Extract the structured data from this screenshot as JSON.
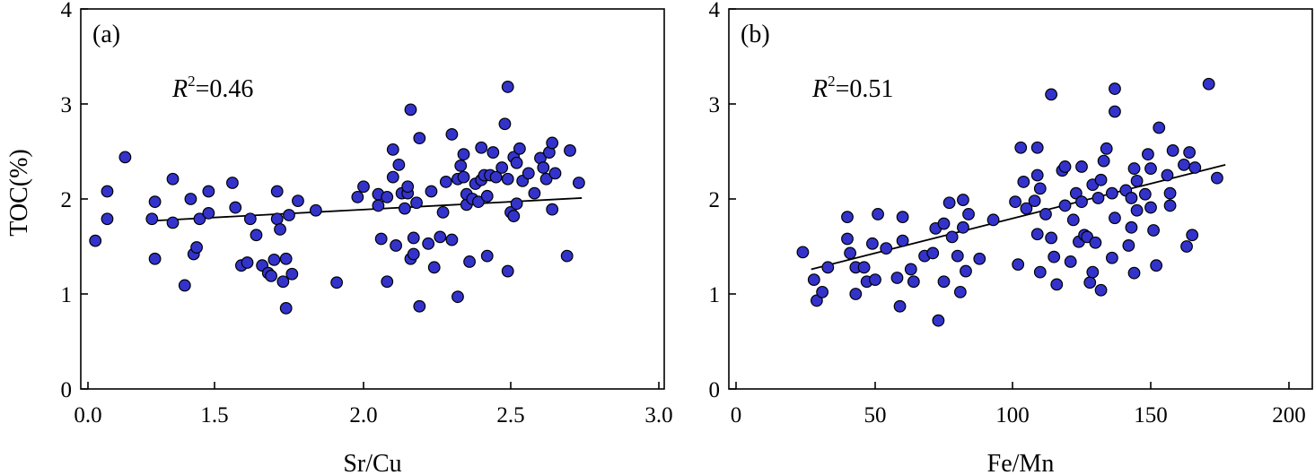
{
  "figure": {
    "ylabel": "TOC(%)",
    "point_color": "#3333cc"
  },
  "chart_data": [
    {
      "type": "scatter",
      "panel_label": "(a)",
      "r2_label": "R",
      "r2_sup": "2",
      "r2_value": "=0.46",
      "xlabel": "Sr/Cu",
      "ylabel": "TOC(%)",
      "xlim": [
        0.0,
        3.0
      ],
      "ylim": [
        0,
        4
      ],
      "xticks": [
        "0.0",
        "1.5",
        "2.0",
        "2.5",
        "3.0"
      ],
      "yticks": [
        "0",
        "1",
        "2",
        "3",
        "4"
      ],
      "trendline": {
        "x": [
          1.29,
          2.74
        ],
        "y": [
          1.77,
          2.01
        ]
      },
      "points": [
        {
          "x": 1.1,
          "y": 1.56
        },
        {
          "x": 1.14,
          "y": 2.08
        },
        {
          "x": 1.14,
          "y": 1.79
        },
        {
          "x": 1.2,
          "y": 2.44
        },
        {
          "x": 1.29,
          "y": 1.79
        },
        {
          "x": 1.3,
          "y": 1.97
        },
        {
          "x": 1.3,
          "y": 1.37
        },
        {
          "x": 1.36,
          "y": 1.75
        },
        {
          "x": 1.36,
          "y": 2.21
        },
        {
          "x": 1.4,
          "y": 1.09
        },
        {
          "x": 1.42,
          "y": 2.0
        },
        {
          "x": 1.43,
          "y": 1.42
        },
        {
          "x": 1.44,
          "y": 1.49
        },
        {
          "x": 1.45,
          "y": 1.79
        },
        {
          "x": 1.48,
          "y": 2.08
        },
        {
          "x": 1.48,
          "y": 1.85
        },
        {
          "x": 1.56,
          "y": 2.17
        },
        {
          "x": 1.57,
          "y": 1.91
        },
        {
          "x": 1.59,
          "y": 1.3
        },
        {
          "x": 1.61,
          "y": 1.33
        },
        {
          "x": 1.62,
          "y": 1.79
        },
        {
          "x": 1.64,
          "y": 1.62
        },
        {
          "x": 1.66,
          "y": 1.3
        },
        {
          "x": 1.68,
          "y": 1.22
        },
        {
          "x": 1.69,
          "y": 1.19
        },
        {
          "x": 1.7,
          "y": 1.36
        },
        {
          "x": 1.71,
          "y": 1.79
        },
        {
          "x": 1.71,
          "y": 2.08
        },
        {
          "x": 1.72,
          "y": 1.68
        },
        {
          "x": 1.73,
          "y": 1.13
        },
        {
          "x": 1.74,
          "y": 0.85
        },
        {
          "x": 1.74,
          "y": 1.37
        },
        {
          "x": 1.75,
          "y": 1.83
        },
        {
          "x": 1.76,
          "y": 1.21
        },
        {
          "x": 1.78,
          "y": 1.98
        },
        {
          "x": 1.84,
          "y": 1.88
        },
        {
          "x": 1.91,
          "y": 1.12
        },
        {
          "x": 1.98,
          "y": 2.02
        },
        {
          "x": 2.0,
          "y": 2.13
        },
        {
          "x": 2.05,
          "y": 2.05
        },
        {
          "x": 2.05,
          "y": 1.93
        },
        {
          "x": 2.06,
          "y": 1.58
        },
        {
          "x": 2.08,
          "y": 1.13
        },
        {
          "x": 2.08,
          "y": 2.02
        },
        {
          "x": 2.1,
          "y": 2.23
        },
        {
          "x": 2.1,
          "y": 2.52
        },
        {
          "x": 2.11,
          "y": 1.51
        },
        {
          "x": 2.12,
          "y": 2.36
        },
        {
          "x": 2.13,
          "y": 2.06
        },
        {
          "x": 2.14,
          "y": 1.9
        },
        {
          "x": 2.15,
          "y": 2.06
        },
        {
          "x": 2.15,
          "y": 2.13
        },
        {
          "x": 2.16,
          "y": 2.94
        },
        {
          "x": 2.16,
          "y": 1.37
        },
        {
          "x": 2.17,
          "y": 1.59
        },
        {
          "x": 2.17,
          "y": 1.42
        },
        {
          "x": 2.18,
          "y": 1.96
        },
        {
          "x": 2.19,
          "y": 2.64
        },
        {
          "x": 2.19,
          "y": 0.87
        },
        {
          "x": 2.22,
          "y": 1.53
        },
        {
          "x": 2.23,
          "y": 2.08
        },
        {
          "x": 2.24,
          "y": 1.28
        },
        {
          "x": 2.26,
          "y": 1.6
        },
        {
          "x": 2.27,
          "y": 1.86
        },
        {
          "x": 2.28,
          "y": 2.18
        },
        {
          "x": 2.3,
          "y": 1.57
        },
        {
          "x": 2.3,
          "y": 2.68
        },
        {
          "x": 2.32,
          "y": 2.21
        },
        {
          "x": 2.32,
          "y": 0.97
        },
        {
          "x": 2.33,
          "y": 2.35
        },
        {
          "x": 2.34,
          "y": 2.23
        },
        {
          "x": 2.34,
          "y": 2.47
        },
        {
          "x": 2.35,
          "y": 1.94
        },
        {
          "x": 2.35,
          "y": 2.05
        },
        {
          "x": 2.36,
          "y": 1.34
        },
        {
          "x": 2.37,
          "y": 2.0
        },
        {
          "x": 2.38,
          "y": 2.16
        },
        {
          "x": 2.39,
          "y": 1.97
        },
        {
          "x": 2.4,
          "y": 2.54
        },
        {
          "x": 2.4,
          "y": 2.2
        },
        {
          "x": 2.41,
          "y": 2.25
        },
        {
          "x": 2.42,
          "y": 1.4
        },
        {
          "x": 2.42,
          "y": 2.03
        },
        {
          "x": 2.43,
          "y": 2.25
        },
        {
          "x": 2.44,
          "y": 2.49
        },
        {
          "x": 2.45,
          "y": 2.23
        },
        {
          "x": 2.47,
          "y": 2.33
        },
        {
          "x": 2.48,
          "y": 2.79
        },
        {
          "x": 2.49,
          "y": 3.18
        },
        {
          "x": 2.49,
          "y": 2.21
        },
        {
          "x": 2.49,
          "y": 1.24
        },
        {
          "x": 2.5,
          "y": 1.86
        },
        {
          "x": 2.51,
          "y": 1.82
        },
        {
          "x": 2.51,
          "y": 2.44
        },
        {
          "x": 2.52,
          "y": 2.38
        },
        {
          "x": 2.52,
          "y": 1.95
        },
        {
          "x": 2.53,
          "y": 2.53
        },
        {
          "x": 2.54,
          "y": 2.19
        },
        {
          "x": 2.56,
          "y": 2.27
        },
        {
          "x": 2.58,
          "y": 2.06
        },
        {
          "x": 2.6,
          "y": 2.43
        },
        {
          "x": 2.61,
          "y": 2.33
        },
        {
          "x": 2.62,
          "y": 2.21
        },
        {
          "x": 2.63,
          "y": 2.49
        },
        {
          "x": 2.64,
          "y": 1.89
        },
        {
          "x": 2.64,
          "y": 2.59
        },
        {
          "x": 2.65,
          "y": 2.27
        },
        {
          "x": 2.69,
          "y": 1.4
        },
        {
          "x": 2.7,
          "y": 2.51
        },
        {
          "x": 2.73,
          "y": 2.17
        }
      ]
    },
    {
      "type": "scatter",
      "panel_label": "(b)",
      "r2_label": "R",
      "r2_sup": "2",
      "r2_value": "=0.51",
      "xlabel": "Fe/Mn",
      "ylabel": "",
      "xlim": [
        0,
        200
      ],
      "ylim": [
        0,
        4
      ],
      "xticks": [
        "0",
        "50",
        "100",
        "150",
        "200"
      ],
      "yticks": [
        "0",
        "1",
        "2",
        "3",
        "4"
      ],
      "trendline": {
        "x": [
          27,
          177
        ],
        "y": [
          1.26,
          2.36
        ]
      },
      "points": [
        {
          "x": 24,
          "y": 1.44
        },
        {
          "x": 28,
          "y": 1.15
        },
        {
          "x": 29,
          "y": 0.93
        },
        {
          "x": 31,
          "y": 1.02
        },
        {
          "x": 33,
          "y": 1.28
        },
        {
          "x": 40,
          "y": 1.81
        },
        {
          "x": 40,
          "y": 1.58
        },
        {
          "x": 41,
          "y": 1.43
        },
        {
          "x": 43,
          "y": 1.28
        },
        {
          "x": 43,
          "y": 1.0
        },
        {
          "x": 46,
          "y": 1.28
        },
        {
          "x": 47,
          "y": 1.13
        },
        {
          "x": 49,
          "y": 1.53
        },
        {
          "x": 50,
          "y": 1.15
        },
        {
          "x": 51,
          "y": 1.84
        },
        {
          "x": 54,
          "y": 1.48
        },
        {
          "x": 58,
          "y": 1.17
        },
        {
          "x": 59,
          "y": 0.87
        },
        {
          "x": 60,
          "y": 1.56
        },
        {
          "x": 60,
          "y": 1.81
        },
        {
          "x": 63,
          "y": 1.26
        },
        {
          "x": 64,
          "y": 1.13
        },
        {
          "x": 68,
          "y": 1.4
        },
        {
          "x": 71,
          "y": 1.43
        },
        {
          "x": 72,
          "y": 1.69
        },
        {
          "x": 73,
          "y": 0.72
        },
        {
          "x": 75,
          "y": 1.13
        },
        {
          "x": 75,
          "y": 1.74
        },
        {
          "x": 77,
          "y": 1.96
        },
        {
          "x": 78,
          "y": 1.6
        },
        {
          "x": 80,
          "y": 1.4
        },
        {
          "x": 81,
          "y": 1.02
        },
        {
          "x": 82,
          "y": 1.99
        },
        {
          "x": 82,
          "y": 1.7
        },
        {
          "x": 83,
          "y": 1.24
        },
        {
          "x": 84,
          "y": 1.84
        },
        {
          "x": 88,
          "y": 1.37
        },
        {
          "x": 93,
          "y": 1.78
        },
        {
          "x": 101,
          "y": 1.97
        },
        {
          "x": 102,
          "y": 1.31
        },
        {
          "x": 103,
          "y": 2.54
        },
        {
          "x": 104,
          "y": 2.18
        },
        {
          "x": 105,
          "y": 1.9
        },
        {
          "x": 108,
          "y": 1.98
        },
        {
          "x": 109,
          "y": 1.63
        },
        {
          "x": 109,
          "y": 2.25
        },
        {
          "x": 109,
          "y": 2.54
        },
        {
          "x": 110,
          "y": 1.23
        },
        {
          "x": 110,
          "y": 2.11
        },
        {
          "x": 112,
          "y": 1.84
        },
        {
          "x": 114,
          "y": 1.59
        },
        {
          "x": 114,
          "y": 3.1
        },
        {
          "x": 115,
          "y": 1.39
        },
        {
          "x": 116,
          "y": 1.1
        },
        {
          "x": 118,
          "y": 2.3
        },
        {
          "x": 119,
          "y": 2.34
        },
        {
          "x": 119,
          "y": 1.93
        },
        {
          "x": 121,
          "y": 1.34
        },
        {
          "x": 122,
          "y": 1.78
        },
        {
          "x": 123,
          "y": 2.06
        },
        {
          "x": 124,
          "y": 1.55
        },
        {
          "x": 125,
          "y": 2.34
        },
        {
          "x": 125,
          "y": 1.97
        },
        {
          "x": 126,
          "y": 1.62
        },
        {
          "x": 127,
          "y": 1.6
        },
        {
          "x": 128,
          "y": 1.12
        },
        {
          "x": 129,
          "y": 1.23
        },
        {
          "x": 129,
          "y": 2.15
        },
        {
          "x": 130,
          "y": 1.54
        },
        {
          "x": 131,
          "y": 2.01
        },
        {
          "x": 132,
          "y": 1.04
        },
        {
          "x": 132,
          "y": 2.2
        },
        {
          "x": 133,
          "y": 2.4
        },
        {
          "x": 134,
          "y": 2.53
        },
        {
          "x": 136,
          "y": 2.06
        },
        {
          "x": 136,
          "y": 1.38
        },
        {
          "x": 137,
          "y": 3.16
        },
        {
          "x": 137,
          "y": 2.92
        },
        {
          "x": 137,
          "y": 1.8
        },
        {
          "x": 141,
          "y": 2.09
        },
        {
          "x": 142,
          "y": 1.51
        },
        {
          "x": 143,
          "y": 2.01
        },
        {
          "x": 143,
          "y": 1.7
        },
        {
          "x": 144,
          "y": 1.22
        },
        {
          "x": 144,
          "y": 2.32
        },
        {
          "x": 145,
          "y": 1.88
        },
        {
          "x": 145,
          "y": 2.19
        },
        {
          "x": 148,
          "y": 2.05
        },
        {
          "x": 149,
          "y": 2.47
        },
        {
          "x": 150,
          "y": 1.91
        },
        {
          "x": 150,
          "y": 2.32
        },
        {
          "x": 151,
          "y": 1.67
        },
        {
          "x": 152,
          "y": 1.3
        },
        {
          "x": 153,
          "y": 2.75
        },
        {
          "x": 156,
          "y": 2.25
        },
        {
          "x": 157,
          "y": 2.06
        },
        {
          "x": 157,
          "y": 1.93
        },
        {
          "x": 158,
          "y": 2.51
        },
        {
          "x": 162,
          "y": 2.36
        },
        {
          "x": 163,
          "y": 1.5
        },
        {
          "x": 164,
          "y": 2.49
        },
        {
          "x": 165,
          "y": 1.62
        },
        {
          "x": 166,
          "y": 2.33
        },
        {
          "x": 171,
          "y": 3.21
        },
        {
          "x": 174,
          "y": 2.22
        }
      ]
    }
  ]
}
